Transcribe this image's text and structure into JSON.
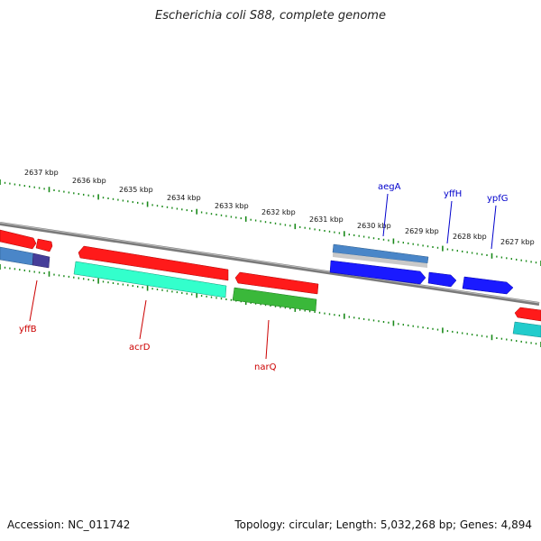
{
  "title": "Escherichia coli S88, complete genome",
  "footer": {
    "accession": "Accession: NC_011742",
    "summary": "Topology: circular; Length: 5,032,268 bp; Genes: 4,894"
  },
  "colors": {
    "backbone": "#808080",
    "ticks": "#1a8a1a",
    "forward_label": "#0000cc",
    "reverse_label": "#cc0000",
    "red_gene": "#ff0000",
    "blue_gene": "#0000ff",
    "green_gene": "#33bb33",
    "teal_gene": "#33ffcc",
    "steel_gene": "#4a86c8",
    "indigo_gene": "#453d99"
  },
  "scale_labels": [
    "2637 kbp",
    "2636 kbp",
    "2635 kbp",
    "2634 kbp",
    "2633 kbp",
    "2632 kbp",
    "2631 kbp",
    "2630 kbp",
    "2629 kbp",
    "2628 kbp",
    "2627 kbp"
  ],
  "gene_labels": [
    {
      "name": "aegA",
      "strand": "forward"
    },
    {
      "name": "yffH",
      "strand": "forward"
    },
    {
      "name": "ypfG",
      "strand": "forward"
    },
    {
      "name": "yffB",
      "strand": "reverse"
    },
    {
      "name": "acrD",
      "strand": "reverse"
    },
    {
      "name": "narQ",
      "strand": "reverse"
    }
  ]
}
